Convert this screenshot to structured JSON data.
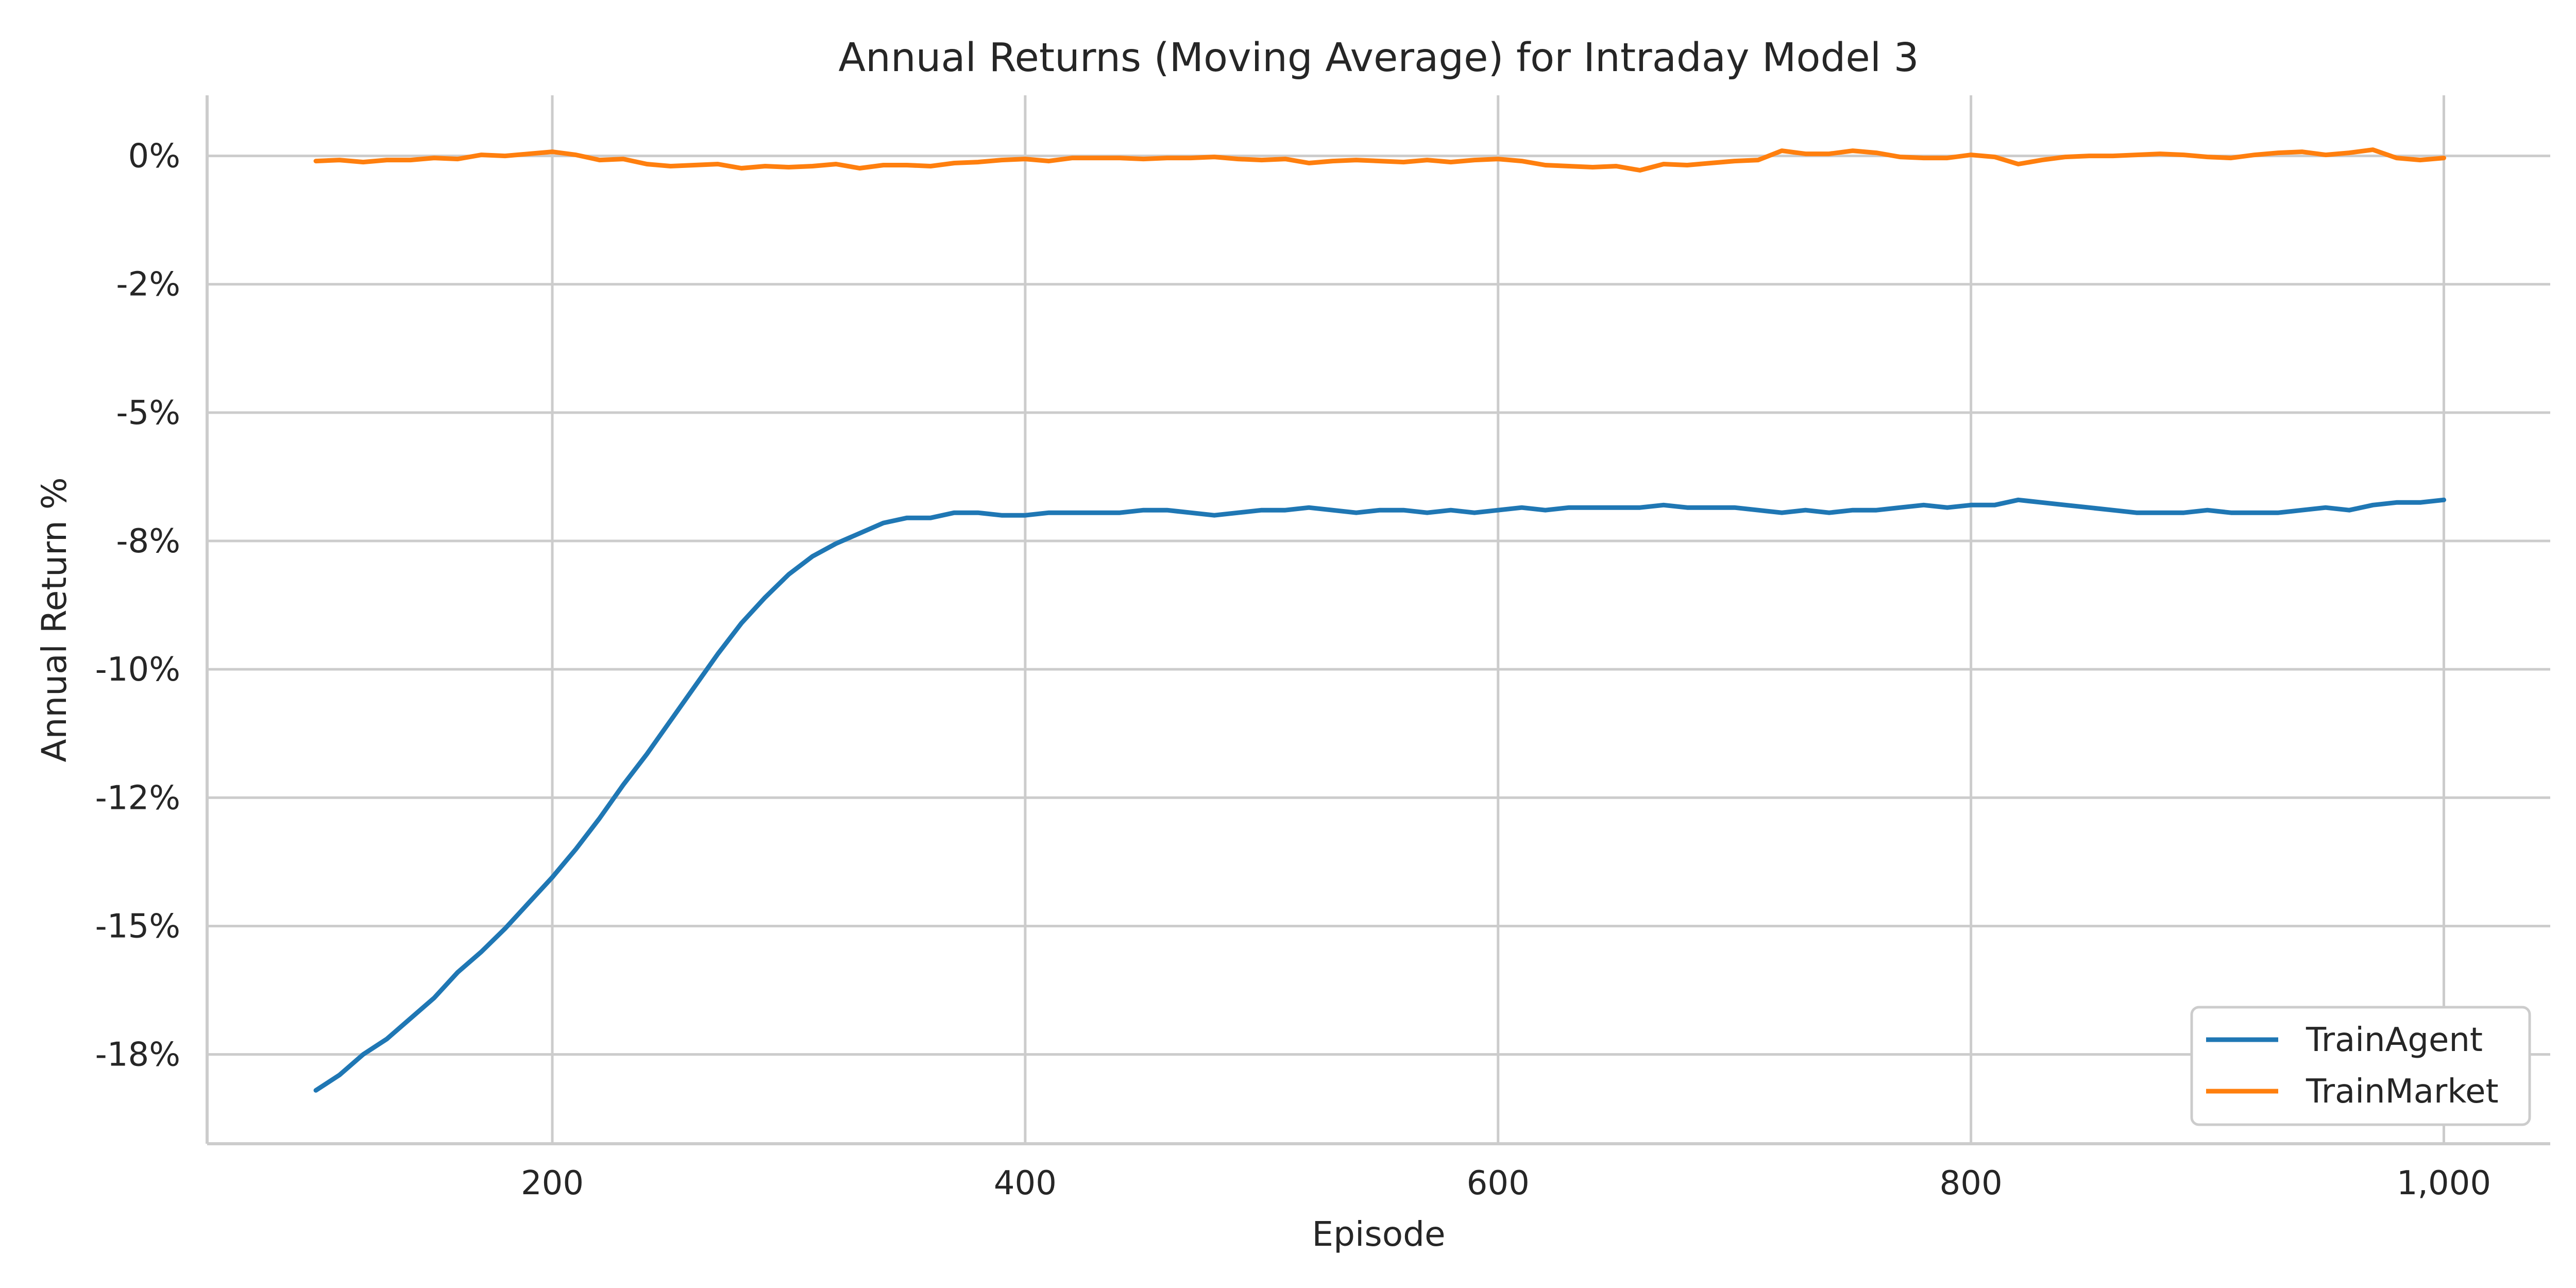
{
  "chart_data": {
    "type": "line",
    "title": "Annual Returns (Moving Average) for Intraday Model 3",
    "xlabel": "Episode",
    "ylabel": "Annual Return %",
    "xlim": [
      54,
      1045
    ],
    "ylim": [
      -0.1924,
      0.0118
    ],
    "x_ticks": [
      200,
      400,
      600,
      800,
      1000
    ],
    "x_tick_labels": [
      "200",
      "400",
      "600",
      "800",
      "1,000"
    ],
    "y_ticks": [
      0,
      -0.025,
      -0.05,
      -0.075,
      -0.1,
      -0.125,
      -0.15,
      -0.175
    ],
    "y_tick_labels": [
      "0%",
      "-2%",
      "-5%",
      "-8%",
      "-10%",
      "-12%",
      "-15%",
      "-18%"
    ],
    "grid": true,
    "legend_position": "bottom-right",
    "series": [
      {
        "name": "TrainAgent",
        "color": "#1f77b4",
        "x": [
          100,
          110,
          120,
          130,
          140,
          150,
          160,
          170,
          180,
          190,
          200,
          210,
          220,
          230,
          240,
          250,
          260,
          270,
          280,
          290,
          300,
          310,
          320,
          330,
          340,
          350,
          360,
          370,
          380,
          390,
          400,
          410,
          420,
          430,
          440,
          450,
          460,
          470,
          480,
          490,
          500,
          510,
          520,
          530,
          540,
          550,
          560,
          570,
          580,
          590,
          600,
          610,
          620,
          630,
          640,
          650,
          660,
          670,
          680,
          690,
          700,
          710,
          720,
          730,
          740,
          750,
          760,
          770,
          780,
          790,
          800,
          810,
          820,
          830,
          840,
          850,
          860,
          870,
          880,
          890,
          900,
          910,
          920,
          930,
          940,
          950,
          960,
          970,
          980,
          990,
          1000
        ],
        "values": [
          -0.182,
          -0.179,
          -0.175,
          -0.172,
          -0.168,
          -0.164,
          -0.159,
          -0.155,
          -0.1505,
          -0.1455,
          -0.1405,
          -0.135,
          -0.129,
          -0.1225,
          -0.1165,
          -0.11,
          -0.1035,
          -0.097,
          -0.091,
          -0.086,
          -0.0815,
          -0.078,
          -0.0755,
          -0.0735,
          -0.0715,
          -0.0705,
          -0.0705,
          -0.0695,
          -0.0695,
          -0.07,
          -0.07,
          -0.0695,
          -0.0695,
          -0.0695,
          -0.0695,
          -0.069,
          -0.069,
          -0.0695,
          -0.07,
          -0.0695,
          -0.069,
          -0.069,
          -0.0685,
          -0.069,
          -0.0695,
          -0.069,
          -0.069,
          -0.0695,
          -0.069,
          -0.0695,
          -0.069,
          -0.0685,
          -0.069,
          -0.0685,
          -0.0685,
          -0.0685,
          -0.0685,
          -0.068,
          -0.0685,
          -0.0685,
          -0.0685,
          -0.069,
          -0.0695,
          -0.069,
          -0.0695,
          -0.069,
          -0.069,
          -0.0685,
          -0.068,
          -0.0685,
          -0.068,
          -0.068,
          -0.067,
          -0.0675,
          -0.068,
          -0.0685,
          -0.069,
          -0.0695,
          -0.0695,
          -0.0695,
          -0.069,
          -0.0695,
          -0.0695,
          -0.0695,
          -0.069,
          -0.0685,
          -0.069,
          -0.068,
          -0.0675,
          -0.0675,
          -0.067
        ]
      },
      {
        "name": "TrainMarket",
        "color": "#ff7f0e",
        "x": [
          100,
          110,
          120,
          130,
          140,
          150,
          160,
          170,
          180,
          190,
          200,
          210,
          220,
          230,
          240,
          250,
          260,
          270,
          280,
          290,
          300,
          310,
          320,
          330,
          340,
          350,
          360,
          370,
          380,
          390,
          400,
          410,
          420,
          430,
          440,
          450,
          460,
          470,
          480,
          490,
          500,
          510,
          520,
          530,
          540,
          550,
          560,
          570,
          580,
          590,
          600,
          610,
          620,
          630,
          640,
          650,
          660,
          670,
          680,
          690,
          700,
          710,
          720,
          730,
          740,
          750,
          760,
          770,
          780,
          790,
          800,
          810,
          820,
          830,
          840,
          850,
          860,
          870,
          880,
          890,
          900,
          910,
          920,
          930,
          940,
          950,
          960,
          970,
          980,
          990,
          1000
        ],
        "values": [
          -0.001,
          -0.0008,
          -0.0012,
          -0.0008,
          -0.0008,
          -0.0004,
          -0.0006,
          0.0002,
          0,
          0.0004,
          0.0008,
          0.0002,
          -0.0008,
          -0.0006,
          -0.0016,
          -0.002,
          -0.0018,
          -0.0016,
          -0.0024,
          -0.002,
          -0.0022,
          -0.002,
          -0.0016,
          -0.0024,
          -0.0018,
          -0.0018,
          -0.002,
          -0.0014,
          -0.0012,
          -0.0008,
          -0.0006,
          -0.001,
          -0.0004,
          -0.0004,
          -0.0004,
          -0.0006,
          -0.0004,
          -0.0004,
          -0.0002,
          -0.0006,
          -0.0008,
          -0.0006,
          -0.0014,
          -0.001,
          -0.0008,
          -0.001,
          -0.0012,
          -0.0008,
          -0.0012,
          -0.0008,
          -0.0006,
          -0.001,
          -0.0018,
          -0.002,
          -0.0022,
          -0.002,
          -0.0028,
          -0.0016,
          -0.0018,
          -0.0014,
          -0.001,
          -0.0008,
          0.001,
          0.0004,
          0.0004,
          0.001,
          0.0006,
          -0.0002,
          -0.0004,
          -0.0004,
          0.0002,
          -0.0002,
          -0.0016,
          -0.0008,
          -0.0002,
          0,
          0,
          0.0002,
          0.0004,
          0.0002,
          -0.0002,
          -0.0004,
          0.0002,
          0.0006,
          0.0008,
          0.0002,
          0.0006,
          0.0012,
          -0.0004,
          -0.0008,
          -0.0004
        ]
      }
    ]
  }
}
